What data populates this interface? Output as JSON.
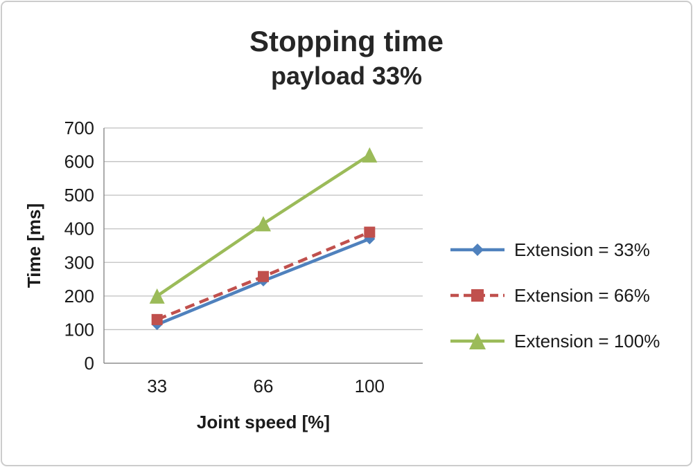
{
  "title": {
    "line1": "Stopping time",
    "line2": "payload 33%"
  },
  "chart_data": {
    "type": "line",
    "title": "Stopping time",
    "subtitle": "payload 33%",
    "xlabel": "Joint speed [%]",
    "ylabel": "Time [ms]",
    "categories": [
      "33",
      "66",
      "100"
    ],
    "series": [
      {
        "name": "Extension = 33%",
        "values": [
          115,
          245,
          370
        ],
        "color": "#4F81BD",
        "marker": "diamond",
        "msize": 8,
        "dash": ""
      },
      {
        "name": "Extension = 66%",
        "values": [
          130,
          258,
          390
        ],
        "color": "#C0504D",
        "marker": "square",
        "msize": 8,
        "dash": "14 8"
      },
      {
        "name": "Extension = 100%",
        "values": [
          200,
          415,
          620
        ],
        "color": "#9BBB59",
        "marker": "triangle",
        "msize": 11,
        "dash": ""
      }
    ],
    "ylim": [
      0,
      700
    ],
    "ytick_step": 100,
    "grid": true,
    "legend_position": "right"
  },
  "colors": {
    "grid": "#BFBFBF",
    "axis": "#808080",
    "text": "#1A1A1A",
    "frame_border": "#CCCCCC"
  }
}
